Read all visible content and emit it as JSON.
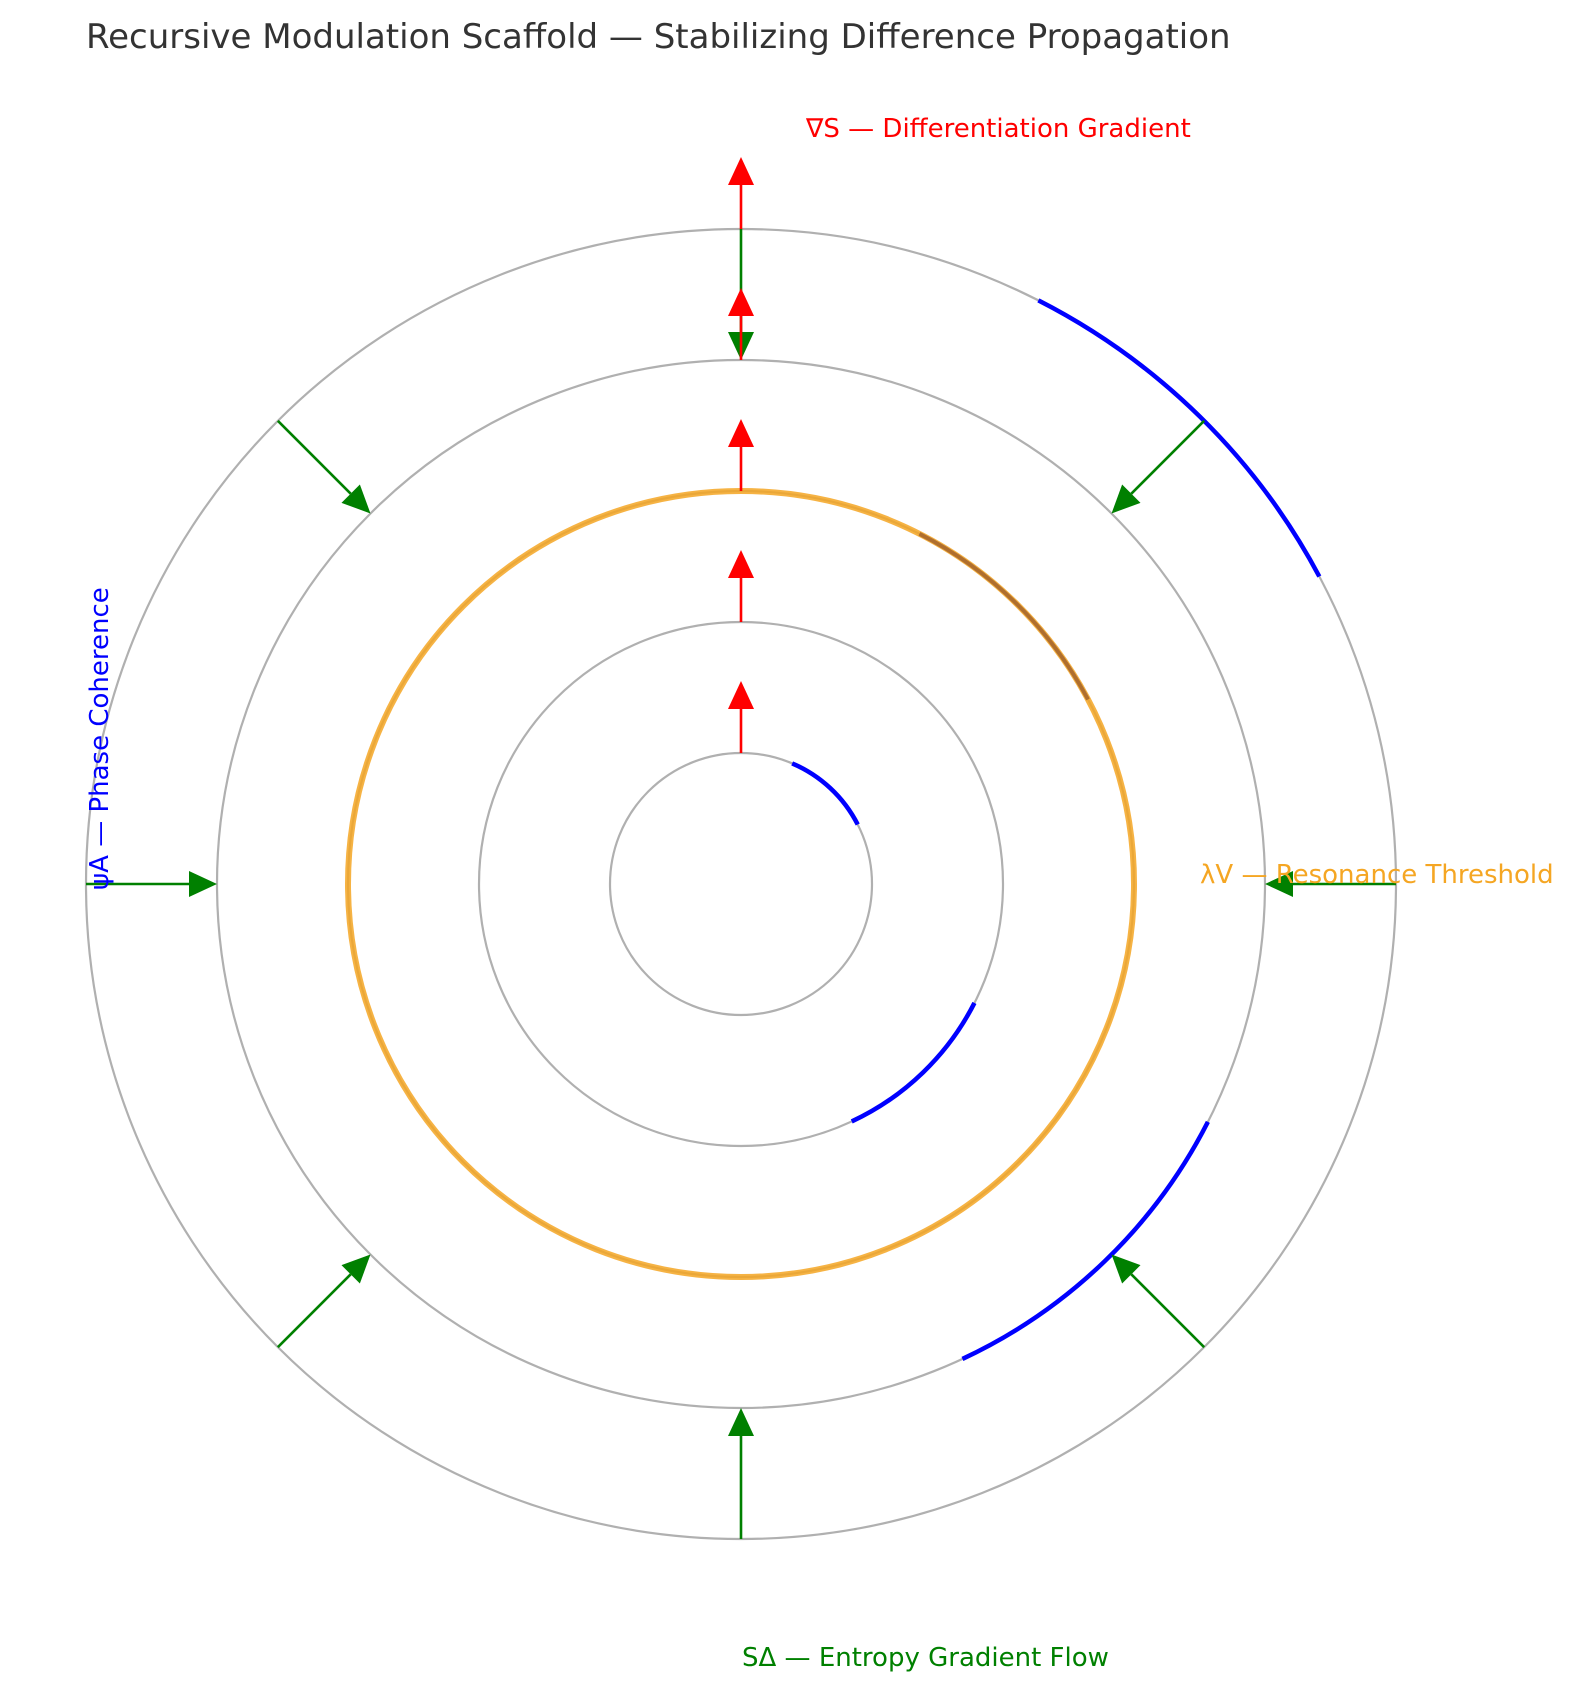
{
  "title": "Recursive Modulation Scaffold — Stabilizing Difference Propagation",
  "labels": {
    "gradient": "∇S — Differentiation Gradient",
    "coherence": "ψA — Phase Coherence",
    "resonance": "λV — Resonance Threshold",
    "entropy": "SΔ — Entropy Gradient Flow"
  },
  "colors": {
    "rings": "#b0b0b0",
    "gradient": "#ff0000",
    "coherence": "#0000ff",
    "resonance": "#f5a623",
    "entropy": "#008000",
    "overlap": "#a0602a"
  },
  "rings": [
    1,
    2,
    3,
    4,
    5
  ],
  "threshold_ring": 3,
  "gradient_arrows": [
    {
      "from": 1,
      "to": 1.55
    },
    {
      "from": 2,
      "to": 2.55
    },
    {
      "from": 3,
      "to": 3.55
    },
    {
      "from": 4,
      "to": 4.55
    },
    {
      "from": 5,
      "to": 5.55
    }
  ],
  "entropy_arrows": [
    {
      "angle_deg": 0,
      "from": 5,
      "to": 4
    },
    {
      "angle_deg": 45,
      "from": 5,
      "to": 4
    },
    {
      "angle_deg": 90,
      "from": 5,
      "to": 4
    },
    {
      "angle_deg": 135,
      "from": 5,
      "to": 4
    },
    {
      "angle_deg": 180,
      "from": 5,
      "to": 4
    },
    {
      "angle_deg": 225,
      "from": 5,
      "to": 4
    },
    {
      "angle_deg": 270,
      "from": 5,
      "to": 4
    },
    {
      "angle_deg": 315,
      "from": 5,
      "to": 4
    }
  ],
  "coherence_arcs": [
    {
      "ring": 1,
      "start_deg": 27,
      "end_deg": 67
    },
    {
      "ring": 2,
      "start_deg": 295,
      "end_deg": 333
    },
    {
      "ring": 3,
      "start_deg": 28,
      "end_deg": 63
    },
    {
      "ring": 4,
      "start_deg": 295,
      "end_deg": 333
    },
    {
      "ring": 5,
      "start_deg": 28,
      "end_deg": 63
    }
  ]
}
